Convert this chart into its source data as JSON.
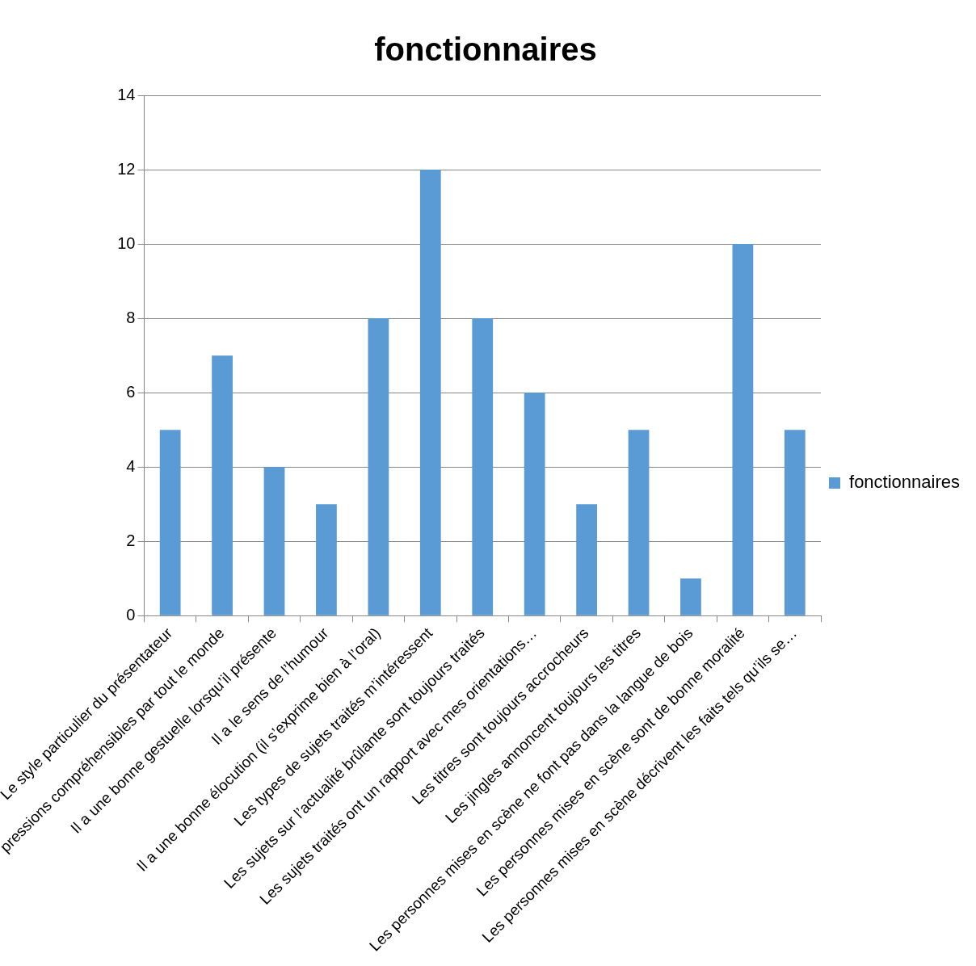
{
  "chart_data": {
    "type": "bar",
    "title": "fonctionnaires",
    "categories": [
      "Le style particulier du présentateur",
      "pressions compréhensibles par tout le monde",
      "Il a une bonne gestuelle lorsqu’il présente",
      "Il a le sens de l’humour",
      "Il a une bonne élocution (il s’exprime bien à l’oral)",
      "Les types de sujets traités m’intéressent",
      "Les sujets sur l’actualité brûlante sont toujours traités",
      "Les sujets traités ont un rapport avec mes orientations…",
      "Les titres sont toujours accrocheurs",
      "Les jingles annoncent toujours les titres",
      "Les personnes mises en scène ne font pas dans la langue de bois",
      "Les personnes mises en scène sont de bonne moralité",
      "Les personnes mises en scène décrivent les faits tels qu’ils se…"
    ],
    "series": [
      {
        "name": "fonctionnaires",
        "color": "#5b9bd5",
        "values": [
          5,
          7,
          4,
          3,
          8,
          12,
          8,
          6,
          3,
          5,
          1,
          10,
          5
        ]
      }
    ],
    "ylim": [
      0,
      14
    ],
    "yticks": [
      0,
      2,
      4,
      6,
      8,
      10,
      12,
      14
    ],
    "grid": "y",
    "legend": "right"
  }
}
